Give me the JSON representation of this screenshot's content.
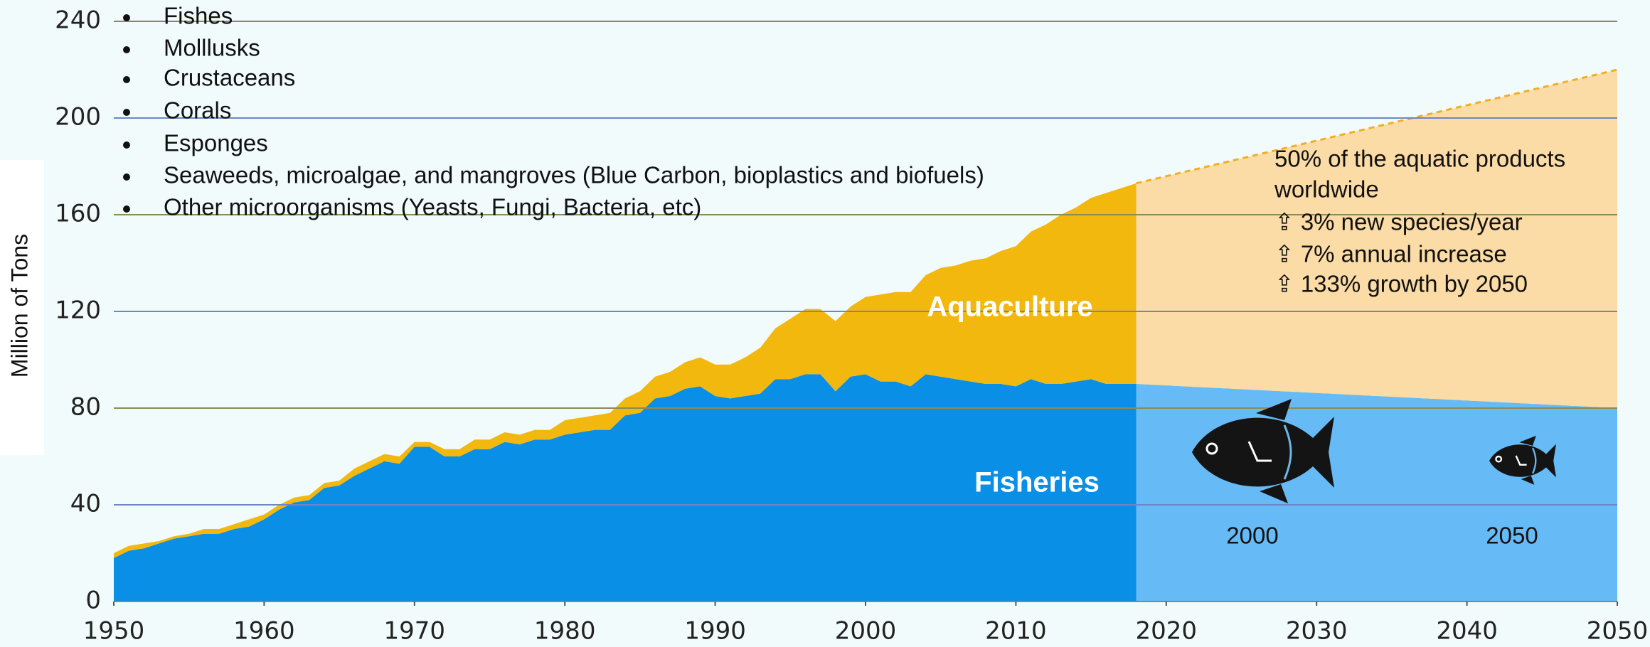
{
  "chart_data": {
    "type": "stacked-area",
    "y_label": "Million of Tons",
    "x": [
      1950,
      1951,
      1952,
      1953,
      1954,
      1955,
      1956,
      1957,
      1958,
      1959,
      1960,
      1961,
      1962,
      1963,
      1964,
      1965,
      1966,
      1967,
      1968,
      1969,
      1970,
      1971,
      1972,
      1973,
      1974,
      1975,
      1976,
      1977,
      1978,
      1979,
      1980,
      1981,
      1982,
      1983,
      1984,
      1985,
      1986,
      1987,
      1988,
      1989,
      1990,
      1991,
      1992,
      1993,
      1994,
      1995,
      1996,
      1997,
      1998,
      1999,
      2000,
      2001,
      2002,
      2003,
      2004,
      2005,
      2006,
      2007,
      2008,
      2009,
      2010,
      2011,
      2012,
      2013,
      2014,
      2015,
      2016,
      2017,
      2018
    ],
    "series": [
      {
        "name": "Fisheries",
        "color": "#0a8fe6",
        "values": [
          18,
          21,
          22,
          24,
          26,
          27,
          28,
          28,
          30,
          31,
          34,
          38,
          41,
          42,
          47,
          48,
          52,
          55,
          58,
          57,
          64,
          64,
          60,
          60,
          63,
          63,
          66,
          65,
          67,
          67,
          69,
          70,
          71,
          71,
          77,
          78,
          84,
          85,
          88,
          89,
          85,
          84,
          85,
          86,
          92,
          92,
          94,
          94,
          87,
          93,
          94,
          91,
          91,
          89,
          94,
          93,
          92,
          91,
          90,
          90,
          89,
          92,
          90,
          90,
          91,
          92,
          90,
          90,
          90
        ]
      },
      {
        "name": "Aquaculture",
        "color": "#f2b80e",
        "values": [
          2,
          2,
          2,
          1,
          1,
          1,
          2,
          2,
          2,
          3,
          2,
          2,
          2,
          2,
          2,
          2,
          3,
          3,
          3,
          3,
          2,
          2,
          3,
          3,
          4,
          4,
          4,
          4,
          4,
          4,
          6,
          6,
          6,
          7,
          7,
          9,
          9,
          10,
          11,
          12,
          13,
          14,
          16,
          19,
          21,
          25,
          27,
          27,
          29,
          29,
          32,
          36,
          37,
          39,
          41,
          45,
          47,
          50,
          52,
          55,
          58,
          61,
          66,
          70,
          72,
          75,
          79,
          81,
          83
        ]
      }
    ],
    "projection": {
      "x": [
        2018,
        2050
      ],
      "series": [
        {
          "color": "#66bbf6",
          "values": [
            90,
            80
          ]
        },
        {
          "color": "#fbdba6",
          "values": [
            83,
            140
          ]
        }
      ],
      "line_color": "#f0b020"
    },
    "xlim": [
      1950,
      2050
    ],
    "xticks": [
      1950,
      1960,
      1970,
      1980,
      1990,
      2000,
      2010,
      2020,
      2030,
      2040,
      2050
    ],
    "ylim": [
      0,
      240
    ],
    "yticks": [
      0,
      40,
      80,
      120,
      160,
      200,
      240
    ],
    "grid": true,
    "bullets": [
      "Fishes",
      "Molllusks",
      "Crustaceans",
      "Corals",
      "Esponges",
      "Seaweeds, microalgae, and mangroves (Blue Carbon, bioplastics and biofuels)",
      "Other microorganisms (Yeasts, Fungi, Bacteria, etc)"
    ],
    "annotation": [
      "50% of the aquatic products",
      "worldwide",
      "⇪  3% new species/year",
      "⇪  7% annual increase",
      "⇪  133% growth by 2050"
    ],
    "icon_labels": [
      "2000",
      "2050"
    ]
  }
}
